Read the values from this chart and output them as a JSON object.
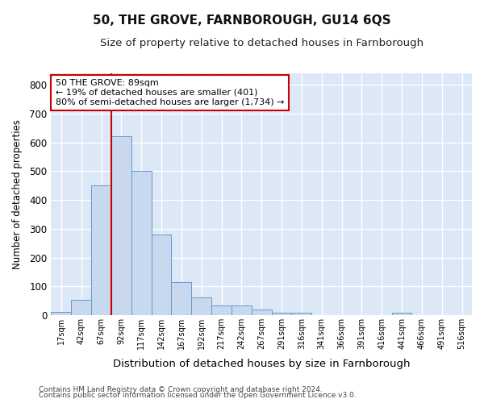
{
  "title": "50, THE GROVE, FARNBOROUGH, GU14 6QS",
  "subtitle": "Size of property relative to detached houses in Farnborough",
  "xlabel": "Distribution of detached houses by size in Farnborough",
  "ylabel": "Number of detached properties",
  "categories": [
    "17sqm",
    "42sqm",
    "67sqm",
    "92sqm",
    "117sqm",
    "142sqm",
    "167sqm",
    "192sqm",
    "217sqm",
    "242sqm",
    "267sqm",
    "291sqm",
    "316sqm",
    "341sqm",
    "366sqm",
    "391sqm",
    "416sqm",
    "441sqm",
    "466sqm",
    "491sqm",
    "516sqm"
  ],
  "values": [
    12,
    55,
    450,
    621,
    501,
    280,
    115,
    62,
    35,
    35,
    20,
    10,
    10,
    0,
    0,
    0,
    0,
    8,
    0,
    0,
    0
  ],
  "bar_color": "#c8d8ee",
  "bar_edge_color": "#6699cc",
  "fig_bg_color": "#ffffff",
  "plot_bg_color": "#dce8f5",
  "grid_color": "#ffffff",
  "marker_line_color": "#cc0000",
  "annotation_text": "50 THE GROVE: 89sqm\n← 19% of detached houses are smaller (401)\n80% of semi-detached houses are larger (1,734) →",
  "annotation_box_color": "#ffffff",
  "annotation_box_edge": "#cc0000",
  "ylim": [
    0,
    840
  ],
  "yticks": [
    0,
    100,
    200,
    300,
    400,
    500,
    600,
    700,
    800
  ],
  "footer1": "Contains HM Land Registry data © Crown copyright and database right 2024.",
  "footer2": "Contains public sector information licensed under the Open Government Licence v3.0."
}
